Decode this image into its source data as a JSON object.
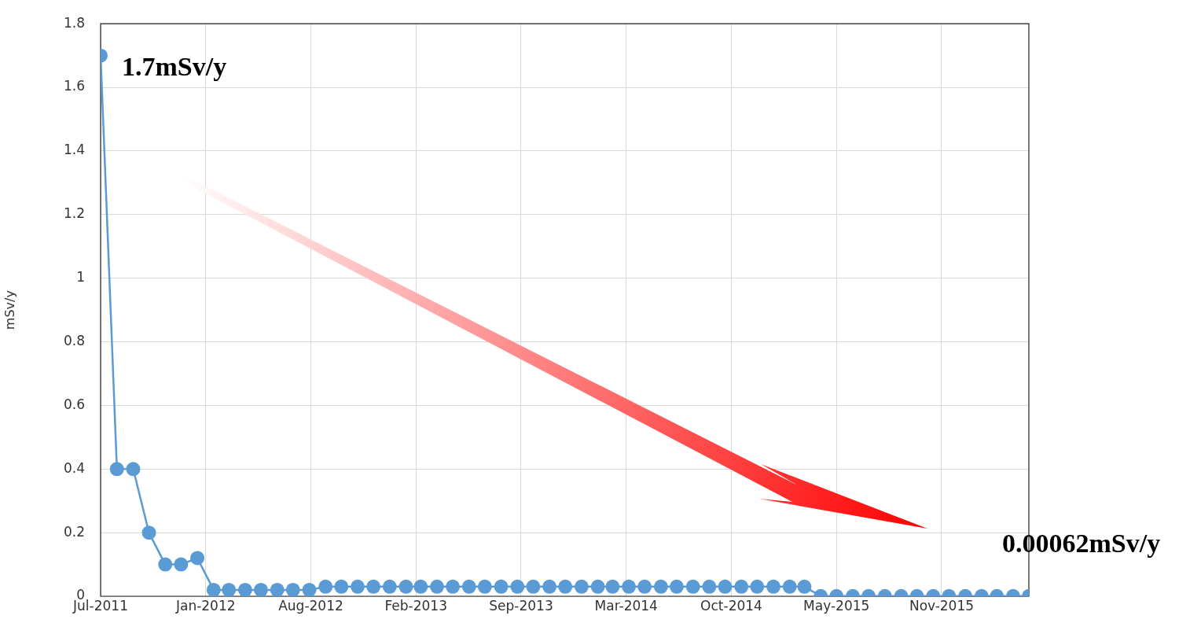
{
  "chart_data": {
    "type": "line",
    "ylabel": "mSv/y",
    "x": [
      "2011-07",
      "2011-08",
      "2011-09",
      "2011-10",
      "2011-11",
      "2011-12",
      "2012-01",
      "2012-02",
      "2012-03",
      "2012-04",
      "2012-05",
      "2012-06",
      "2012-07",
      "2012-08",
      "2012-09",
      "2012-10",
      "2012-11",
      "2012-12",
      "2013-01",
      "2013-02",
      "2013-03",
      "2013-04",
      "2013-05",
      "2013-06",
      "2013-07",
      "2013-08",
      "2013-09",
      "2013-10",
      "2013-11",
      "2013-12",
      "2014-01",
      "2014-02",
      "2014-03",
      "2014-04",
      "2014-05",
      "2014-06",
      "2014-07",
      "2014-08",
      "2014-09",
      "2014-10",
      "2014-11",
      "2014-12",
      "2015-01",
      "2015-02",
      "2015-03",
      "2015-04",
      "2015-05",
      "2015-06",
      "2015-07",
      "2015-08",
      "2015-09",
      "2015-10",
      "2015-11",
      "2015-12",
      "2016-01",
      "2016-02",
      "2016-03",
      "2016-04",
      "2016-05"
    ],
    "series": [
      {
        "color": "#5b9bd5",
        "values": [
          1.7,
          0.4,
          0.4,
          0.2,
          0.1,
          0.1,
          0.12,
          0.02,
          0.02,
          0.02,
          0.02,
          0.02,
          0.02,
          0.02,
          0.03,
          0.03,
          0.03,
          0.03,
          0.03,
          0.03,
          0.03,
          0.03,
          0.03,
          0.03,
          0.03,
          0.03,
          0.03,
          0.03,
          0.03,
          0.03,
          0.03,
          0.03,
          0.03,
          0.03,
          0.03,
          0.03,
          0.03,
          0.03,
          0.03,
          0.03,
          0.03,
          0.03,
          0.03,
          0.03,
          0.03,
          0.00062,
          0.00062,
          0.00062,
          0.00062,
          0.00062,
          0.00062,
          0.00062,
          0.00062,
          0.00062,
          0.00062,
          0.00062,
          0.00062,
          0.00062,
          0.00062
        ]
      }
    ],
    "xlim": [
      "2011-07-01",
      "2016-05-01"
    ],
    "xticks": [
      {
        "value": "2011-07-01",
        "label": "Jul-2011"
      },
      {
        "value": "2012-01-17",
        "label": "Jan-2012"
      },
      {
        "value": "2012-08-04",
        "label": "Aug-2012"
      },
      {
        "value": "2013-02-20",
        "label": "Feb-2013"
      },
      {
        "value": "2013-09-08",
        "label": "Sep-2013"
      },
      {
        "value": "2014-03-27",
        "label": "Mar-2014"
      },
      {
        "value": "2014-10-13",
        "label": "Oct-2014"
      },
      {
        "value": "2015-05-01",
        "label": "May-2015"
      },
      {
        "value": "2015-11-17",
        "label": "Nov-2015"
      }
    ],
    "ylim": [
      0,
      1.8
    ],
    "yticks": [
      0,
      0.2,
      0.4,
      0.6,
      0.8,
      1,
      1.2,
      1.4,
      1.6,
      1.8
    ],
    "grid": true,
    "marker": "circle",
    "legend": false,
    "annotations": [
      {
        "text": "1.7mSv/y",
        "x": "2011-07",
        "y": 1.7
      },
      {
        "text": "0.00062mSv/y",
        "x": "2016-05",
        "y": 0.00062
      }
    ]
  }
}
